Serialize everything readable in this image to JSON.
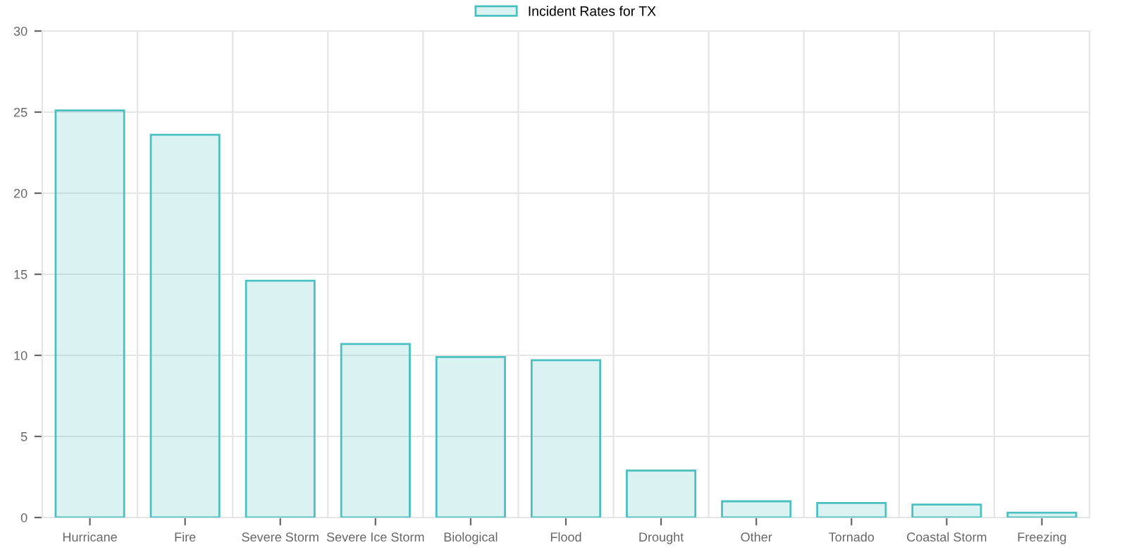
{
  "chart_data": {
    "type": "bar",
    "categories": [
      "Hurricane",
      "Fire",
      "Severe Storm",
      "Severe Ice Storm",
      "Biological",
      "Flood",
      "Drought",
      "Other",
      "Tornado",
      "Coastal Storm",
      "Freezing"
    ],
    "series": [
      {
        "name": "Incident Rates for TX",
        "color": "#4bc0c0",
        "values": [
          25.1,
          23.6,
          14.6,
          10.7,
          9.9,
          9.7,
          2.9,
          1.0,
          0.9,
          0.8,
          0.3
        ]
      }
    ],
    "ylim": [
      0,
      30
    ],
    "yticks": [
      0,
      5,
      10,
      15,
      20,
      25,
      30
    ],
    "grid": true,
    "legend": "top"
  }
}
